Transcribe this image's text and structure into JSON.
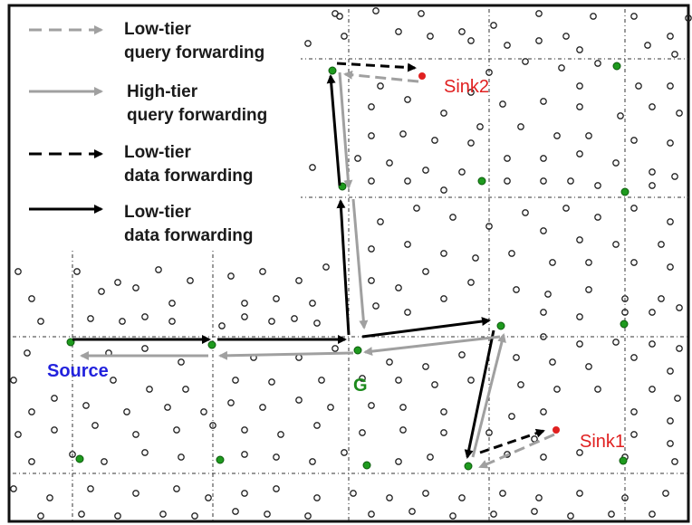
{
  "legend": [
    {
      "line1": "Low-tier",
      "line2": "query forwarding",
      "stroke": "#a0a0a0",
      "dashed": true
    },
    {
      "line1": "High-tier",
      "line2": "query forwarding",
      "stroke": "#a0a0a0",
      "dashed": false
    },
    {
      "line1": "Low-tier",
      "line2": "data forwarding",
      "stroke": "#000000",
      "dashed": true
    },
    {
      "line1": "Low-tier",
      "line2": "data forwarding",
      "stroke": "#000000",
      "dashed": false
    }
  ],
  "labels": {
    "source": "Source",
    "center": "G",
    "sink1": "Sink1",
    "sink2": "Sink2"
  },
  "colors": {
    "source_label": "#2222dd",
    "center_label": "#1c8a1c",
    "sink_label": "#e02020",
    "grid_node": "#1e9a1e",
    "query_arrow": "#a0a0a0",
    "data_arrow": "#000000"
  }
}
